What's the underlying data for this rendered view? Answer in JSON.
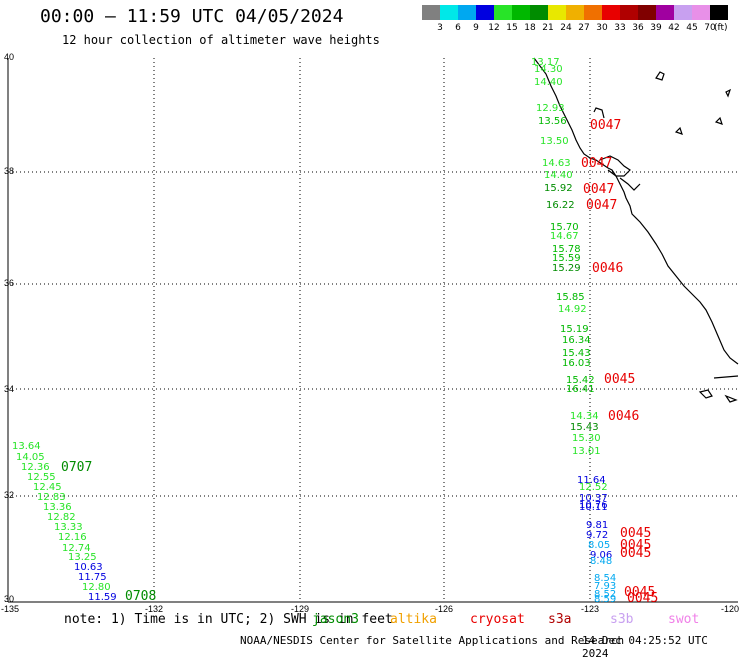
{
  "header": {
    "title": "00:00 – 11:59 UTC 04/05/2024",
    "subtitle": "12 hour collection of altimeter wave heights"
  },
  "scale": {
    "unit_label": "(ft)",
    "bins": [
      {
        "label": "",
        "color": "#808080"
      },
      {
        "label": "3",
        "color": "#00e8e8"
      },
      {
        "label": "6",
        "color": "#00a8f0"
      },
      {
        "label": "9",
        "color": "#0000e0"
      },
      {
        "label": "12",
        "color": "#28e428"
      },
      {
        "label": "15",
        "color": "#00b800"
      },
      {
        "label": "18",
        "color": "#008c00"
      },
      {
        "label": "21",
        "color": "#e8e800"
      },
      {
        "label": "24",
        "color": "#f0b000"
      },
      {
        "label": "27",
        "color": "#f07000"
      },
      {
        "label": "30",
        "color": "#e80000"
      },
      {
        "label": "33",
        "color": "#b00000"
      },
      {
        "label": "36",
        "color": "#800000"
      },
      {
        "label": "39",
        "color": "#a000a0"
      },
      {
        "label": "42",
        "color": "#c8a0f0"
      },
      {
        "label": "45",
        "color": "#e890e8"
      },
      {
        "label": "70",
        "color": "#000000"
      }
    ]
  },
  "axes": {
    "lat_labels": [
      "40",
      "38",
      "36",
      "34",
      "32",
      "30"
    ],
    "lon_labels": [
      "-135",
      "-132",
      "-129",
      "-126",
      "-123",
      "-120"
    ]
  },
  "tracks": {
    "east": {
      "points": [
        {
          "value": "13.17",
          "color": "#28e428"
        },
        {
          "value": "14.30",
          "color": "#28e428"
        },
        {
          "value": "14.40",
          "color": "#28e428"
        },
        {
          "value": "12.93",
          "color": "#28e428"
        },
        {
          "value": "13.56",
          "color": "#00b800"
        },
        {
          "value": "13.50",
          "color": "#28e428"
        },
        {
          "value": "14.63",
          "color": "#28e428"
        },
        {
          "value": "14.40",
          "color": "#28e428"
        },
        {
          "value": "15.92",
          "color": "#008c00"
        },
        {
          "value": "16.22",
          "color": "#008c00"
        },
        {
          "value": "15.70",
          "color": "#00b800"
        },
        {
          "value": "14.67",
          "color": "#28e428"
        },
        {
          "value": "15.78",
          "color": "#00b800"
        },
        {
          "value": "15.59",
          "color": "#00b800"
        },
        {
          "value": "15.29",
          "color": "#008c00"
        },
        {
          "value": "15.85",
          "color": "#00b800"
        },
        {
          "value": "14.92",
          "color": "#28e428"
        },
        {
          "value": "15.19",
          "color": "#00b800"
        },
        {
          "value": "16.34",
          "color": "#00b800"
        },
        {
          "value": "15.43",
          "color": "#00b800"
        },
        {
          "value": "16.03",
          "color": "#00b800"
        },
        {
          "value": "15.42",
          "color": "#00b800"
        },
        {
          "value": "16.41",
          "color": "#00b800"
        },
        {
          "value": "14.34",
          "color": "#28e428"
        },
        {
          "value": "15.43",
          "color": "#008c00"
        },
        {
          "value": "15.30",
          "color": "#28e428"
        },
        {
          "value": "13.01",
          "color": "#28e428"
        },
        {
          "value": "11.64",
          "color": "#0000e0"
        },
        {
          "value": "12.52",
          "color": "#28e428"
        },
        {
          "value": "10.37",
          "color": "#0000e0"
        },
        {
          "value": "10.76",
          "color": "#0000e0"
        },
        {
          "value": "10.11",
          "color": "#0000e0"
        },
        {
          "value": "9.81",
          "color": "#0000e0"
        },
        {
          "value": "9.72",
          "color": "#0000e0"
        },
        {
          "value": "8.05",
          "color": "#00a8f0"
        },
        {
          "value": "9.06",
          "color": "#0000e0"
        },
        {
          "value": "8.48",
          "color": "#00a8f0"
        },
        {
          "value": "8.54",
          "color": "#00a8f0"
        },
        {
          "value": "7.93",
          "color": "#00a8f0"
        },
        {
          "value": "8.52",
          "color": "#00a8f0"
        },
        {
          "value": "8.59",
          "color": "#00a8f0"
        }
      ],
      "time_labels": [
        {
          "value": "0047",
          "color": "#e80000"
        },
        {
          "value": "0047",
          "color": "#e80000"
        },
        {
          "value": "0047",
          "color": "#e80000"
        },
        {
          "value": "0047",
          "color": "#e80000"
        },
        {
          "value": "0046",
          "color": "#e80000"
        },
        {
          "value": "0045",
          "color": "#e80000"
        },
        {
          "value": "0046",
          "color": "#e80000"
        },
        {
          "value": "0045",
          "color": "#e80000"
        },
        {
          "value": "0045",
          "color": "#e80000"
        },
        {
          "value": "0045",
          "color": "#e80000"
        },
        {
          "value": "0045",
          "color": "#e80000"
        },
        {
          "value": "0045",
          "color": "#e80000"
        }
      ]
    },
    "west": {
      "points": [
        {
          "value": "13.64",
          "color": "#28e428"
        },
        {
          "value": "14.05",
          "color": "#28e428"
        },
        {
          "value": "12.36",
          "color": "#28e428"
        },
        {
          "value": "12.55",
          "color": "#28e428"
        },
        {
          "value": "12.45",
          "color": "#28e428"
        },
        {
          "value": "12.83",
          "color": "#28e428"
        },
        {
          "value": "13.36",
          "color": "#28e428"
        },
        {
          "value": "12.82",
          "color": "#28e428"
        },
        {
          "value": "13.33",
          "color": "#28e428"
        },
        {
          "value": "12.16",
          "color": "#28e428"
        },
        {
          "value": "12.74",
          "color": "#28e428"
        },
        {
          "value": "13.25",
          "color": "#28e428"
        },
        {
          "value": "10.63",
          "color": "#0000e0"
        },
        {
          "value": "11.75",
          "color": "#0000e0"
        },
        {
          "value": "12.80",
          "color": "#28e428"
        },
        {
          "value": "11.59",
          "color": "#0000e0"
        }
      ],
      "time_labels": [
        {
          "value": "0707",
          "color": "#008c00"
        },
        {
          "value": "0708",
          "color": "#008c00"
        }
      ]
    }
  },
  "notes": {
    "text": "note: 1) Time is in UTC; 2) SWH is in feet",
    "color": "#000000",
    "overlay": {
      "text": "jason3",
      "color": "#008c00"
    }
  },
  "legend": {
    "altika": {
      "text": "altika",
      "color": "#f0a000"
    },
    "cryosat": {
      "text": "cryosat",
      "color": "#e80000"
    },
    "s3a": {
      "text": "s3a",
      "color": "#b00000"
    },
    "s3b": {
      "text": "s3b",
      "color": "#c8a0f0"
    },
    "swot": {
      "text": "swot",
      "color": "#f080e8"
    }
  },
  "footer": {
    "center": "NOAA/NESDIS Center for Satellite Applications and Research",
    "time": "14 Dec 04:25:52 UTC 2024"
  }
}
